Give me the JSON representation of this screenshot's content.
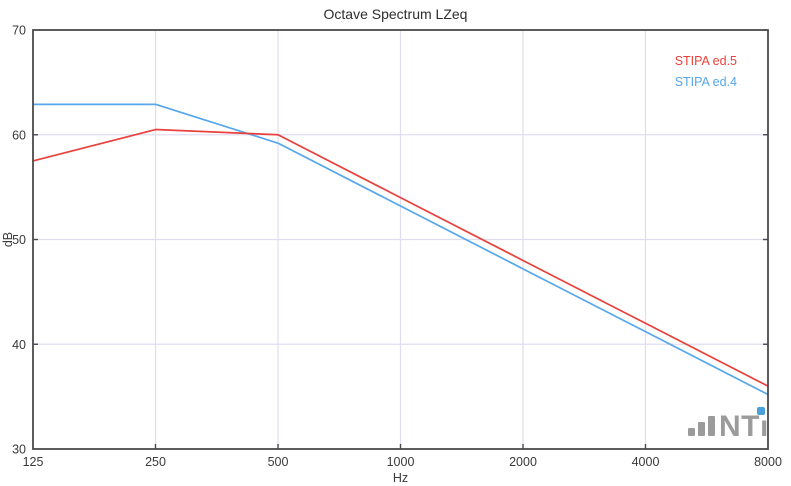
{
  "window": {
    "background": "#ffffff"
  },
  "chart_data": {
    "type": "line",
    "title": "Octave Spectrum LZeq",
    "xlabel": "Hz",
    "ylabel": "dB",
    "x_scale": "log-octave",
    "categories": [
      "125",
      "250",
      "500",
      "1000",
      "2000",
      "4000",
      "8000"
    ],
    "y_ticks": [
      30,
      40,
      50,
      60,
      70
    ],
    "ylim": [
      30,
      70
    ],
    "grid": true,
    "grid_color": "#dfddf0",
    "axis_color": "#4a4a4a",
    "text_color": "#3a3a3a",
    "legend_position": "top-right",
    "series": [
      {
        "name": "STIPA ed.5",
        "color": "#e8413c",
        "values": [
          57.5,
          60.5,
          60.0,
          54.0,
          48.0,
          42.0,
          36.0
        ]
      },
      {
        "name": "STIPA ed.4",
        "color": "#56a7eb",
        "values": [
          62.9,
          62.9,
          59.2,
          53.2,
          47.2,
          41.2,
          35.2
        ]
      }
    ]
  },
  "branding": {
    "logo_text": "NTi",
    "logo_gray": "#9b9b9b",
    "logo_dot_color": "#4ba0dc"
  }
}
